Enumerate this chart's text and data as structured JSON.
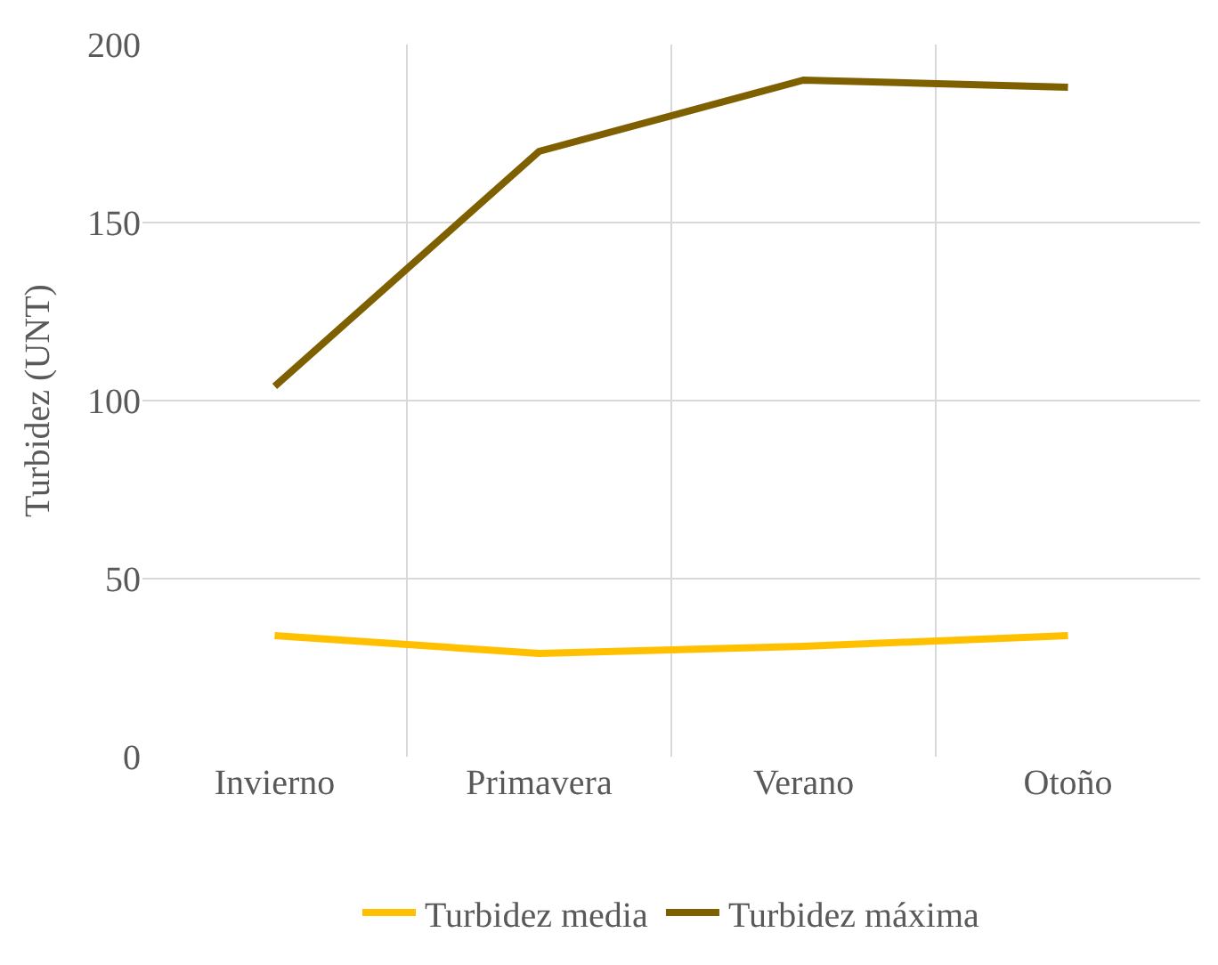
{
  "chart_data": {
    "type": "line",
    "ylabel": "Turbidez (UNT)",
    "categories": [
      "Invierno",
      "Primavera",
      "Verano",
      "Otoño"
    ],
    "series": [
      {
        "name": "Turbidez media",
        "color": "#ffc000",
        "values": [
          34,
          29,
          31,
          34
        ]
      },
      {
        "name": "Turbidez máxima",
        "color": "#7f6000",
        "values": [
          104,
          170,
          190,
          188
        ]
      }
    ],
    "ylim": [
      0,
      200
    ],
    "yticks": [
      0,
      50,
      100,
      150,
      200
    ],
    "grid": true,
    "legend": "bottom",
    "marker": "none",
    "line_style": "solid"
  }
}
